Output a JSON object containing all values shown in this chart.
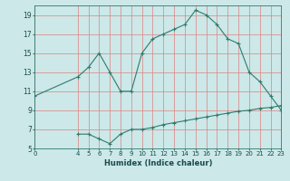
{
  "xlabel": "Humidex (Indice chaleur)",
  "bg_color": "#cce8e8",
  "grid_color": "#e08080",
  "line_color": "#2e7b6e",
  "upper_x": [
    0,
    4,
    5,
    6,
    7,
    8,
    9,
    10,
    11,
    12,
    13,
    14,
    15,
    16,
    17,
    18,
    19,
    20,
    21,
    22,
    23
  ],
  "upper_y": [
    10.5,
    12.5,
    13.5,
    15.0,
    13.0,
    11.0,
    11.0,
    15.0,
    16.5,
    17.0,
    17.5,
    18.0,
    19.5,
    19.0,
    18.0,
    16.5,
    16.0,
    13.0,
    12.0,
    10.5,
    9.0
  ],
  "lower_x": [
    4,
    5,
    6,
    7,
    8,
    9,
    10,
    11,
    12,
    13,
    14,
    15,
    16,
    17,
    18,
    19,
    20,
    21,
    22,
    23
  ],
  "lower_y": [
    6.5,
    6.5,
    6.0,
    5.5,
    6.5,
    7.0,
    7.0,
    7.2,
    7.5,
    7.7,
    7.9,
    8.1,
    8.3,
    8.5,
    8.7,
    8.9,
    9.0,
    9.2,
    9.3,
    9.5
  ],
  "xlim": [
    0,
    23
  ],
  "ylim": [
    5,
    20
  ],
  "yticks": [
    5,
    7,
    9,
    11,
    13,
    15,
    17,
    19
  ],
  "xticks": [
    0,
    4,
    5,
    6,
    7,
    8,
    9,
    10,
    11,
    12,
    13,
    14,
    15,
    16,
    17,
    18,
    19,
    20,
    21,
    22,
    23
  ],
  "tick_color": "#2e7b6e",
  "label_color": "#1a4a4a",
  "xlabel_fontsize": 6.0,
  "tick_fontsize": 5.0
}
